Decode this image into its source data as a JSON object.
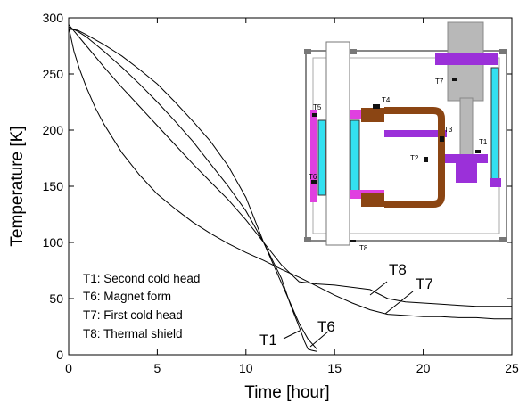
{
  "chart_data": {
    "type": "line",
    "xlabel": "Time [hour]",
    "ylabel": "Temperature [K]",
    "xlim": [
      0,
      25
    ],
    "ylim": [
      0,
      300
    ],
    "xticks": [
      0,
      5,
      10,
      15,
      20,
      25
    ],
    "yticks": [
      0,
      50,
      100,
      150,
      200,
      250,
      300
    ],
    "grid": false,
    "legend_position": "lower-left",
    "legend_lines": [
      "T1: Second cold head",
      "T6: Magnet form",
      "T7: First cold head",
      "T8: Thermal shield"
    ],
    "series": [
      {
        "name": "T1",
        "x": [
          0,
          0.5,
          1,
          2,
          3,
          4,
          5,
          6,
          7,
          8,
          9,
          10,
          11,
          12,
          12.5,
          13,
          13.3,
          13.5,
          13.7,
          14
        ],
        "y": [
          292,
          288,
          283,
          270,
          256,
          241,
          225,
          208,
          190,
          170,
          150,
          128,
          100,
          68,
          45,
          25,
          12,
          5,
          4,
          3
        ]
      },
      {
        "name": "T6",
        "x": [
          0,
          0.5,
          1,
          2,
          3,
          4,
          5,
          6,
          7,
          8,
          9,
          10,
          11,
          11.5,
          12,
          12.5,
          13,
          13.5,
          14
        ],
        "y": [
          290,
          289,
          285,
          276,
          266,
          254,
          241,
          225,
          208,
          190,
          168,
          140,
          100,
          82,
          64,
          46,
          28,
          14,
          5
        ]
      },
      {
        "name": "T7",
        "x": [
          0,
          0.3,
          0.6,
          1,
          1.5,
          2,
          3,
          4,
          5,
          6,
          7,
          8,
          9,
          10,
          11,
          12,
          13,
          14,
          15,
          16,
          17,
          18,
          19,
          20,
          21,
          22,
          23,
          24,
          25
        ],
        "y": [
          292,
          270,
          255,
          238,
          220,
          205,
          180,
          160,
          143,
          130,
          118,
          108,
          99,
          91,
          84,
          76,
          69,
          61,
          53,
          46,
          40,
          36,
          35,
          34,
          34,
          33,
          33,
          32,
          32
        ]
      },
      {
        "name": "T8",
        "x": [
          0,
          1,
          2,
          3,
          4,
          5,
          6,
          7,
          8,
          9,
          10,
          11,
          12,
          13,
          14,
          15,
          16,
          17,
          18,
          19,
          20,
          21,
          22,
          23,
          24,
          25
        ],
        "y": [
          294,
          275,
          256,
          238,
          221,
          204,
          187,
          170,
          154,
          138,
          120,
          100,
          80,
          65,
          63,
          62,
          60,
          58,
          50,
          47,
          46,
          45,
          44,
          43,
          43,
          43
        ]
      }
    ],
    "curve_labels": [
      "T1",
      "T6",
      "T7",
      "T8"
    ],
    "inset": {
      "labels": [
        "T1",
        "T2",
        "T3",
        "T4",
        "T5",
        "T6",
        "T7",
        "T8"
      ]
    }
  }
}
